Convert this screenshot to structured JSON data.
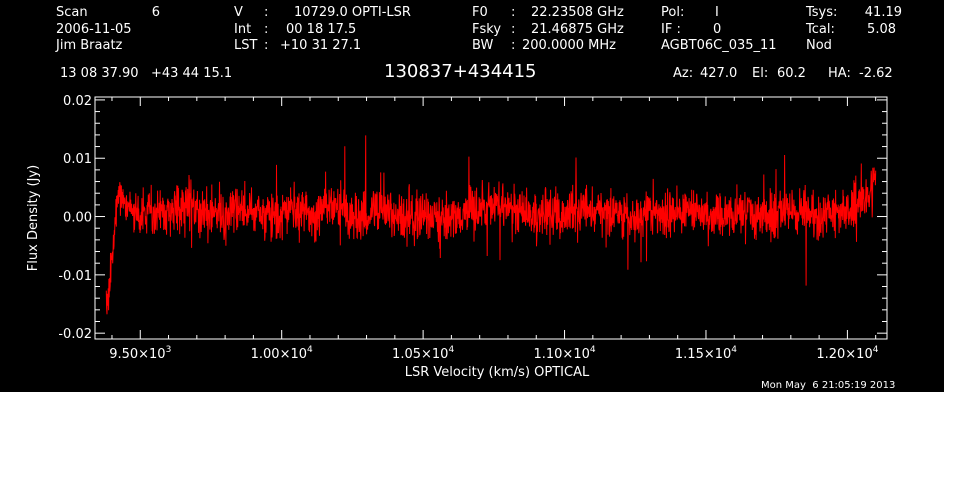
{
  "header": {
    "col1": {
      "scan_label": "Scan",
      "scan_value": "6",
      "date": "2006-11-05",
      "observer": "Jim Braatz"
    },
    "col2": {
      "v_label": "V",
      "v_sep": ":",
      "v_value": "10729.0 OPTI-LSR",
      "int_label": "Int",
      "int_sep": ":",
      "int_value": "00 18 17.5",
      "lst_label": "LST",
      "lst_sep": ":",
      "lst_value": "+10 31 27.1"
    },
    "col3": {
      "f0_label": "F0",
      "f0_sep": ":",
      "f0_value": "22.23508 GHz",
      "fsky_label": "Fsky",
      "fsky_sep": ":",
      "fsky_value": "21.46875 GHz",
      "bw_label": "BW",
      "bw_sep": ":",
      "bw_value": "200.0000 MHz"
    },
    "col4": {
      "pol_label": "Pol:",
      "pol_value": "I",
      "if_label": "IF :",
      "if_value": "0",
      "project": "AGBT06C_035_11",
      "mode": "Nod"
    },
    "col5": {
      "tsys_label": "Tsys:",
      "tsys_value": "41.19",
      "tcal_label": "Tcal:",
      "tcal_value": "5.08"
    },
    "coords": "13 08 37.90   +43 44 15.1",
    "source": "130837+434415",
    "az_label": "Az:",
    "az_value": "427.0",
    "el_label": "El:",
    "el_value": "60.2",
    "ha_label": "HA:",
    "ha_value": "-2.62"
  },
  "timestamp": "Mon May  6 21:05:19 2013",
  "colors": {
    "background": "#000000",
    "axes": "#ffffff",
    "trace": "#ff0000"
  },
  "chart_data": {
    "type": "line",
    "xlabel": "LSR Velocity (km/s) OPTICAL",
    "ylabel": "Flux Density (Jy)",
    "xlim": [
      9340,
      12140
    ],
    "ylim": [
      -0.021,
      0.0205
    ],
    "x_ticks": [
      {
        "value": 9500,
        "mantissa": "9.50",
        "exponent": "3"
      },
      {
        "value": 10000,
        "mantissa": "1.00",
        "exponent": "4"
      },
      {
        "value": 10500,
        "mantissa": "1.05",
        "exponent": "4"
      },
      {
        "value": 11000,
        "mantissa": "1.10",
        "exponent": "4"
      },
      {
        "value": 11500,
        "mantissa": "1.15",
        "exponent": "4"
      },
      {
        "value": 12000,
        "mantissa": "1.20",
        "exponent": "4"
      }
    ],
    "y_ticks": [
      {
        "value": -0.02,
        "label": "-0.02"
      },
      {
        "value": -0.01,
        "label": "-0.01"
      },
      {
        "value": 0.0,
        "label": "0.00"
      },
      {
        "value": 0.01,
        "label": "0.01"
      },
      {
        "value": 0.02,
        "label": "0.02"
      }
    ],
    "series": [
      {
        "x": [
          9380,
          9390,
          9400,
          9410,
          9420,
          9430,
          9450,
          9480,
          9500,
          9550,
          9600,
          9650,
          9700,
          9750,
          9800,
          9850,
          9900,
          9950,
          10000,
          10050,
          10100,
          10150,
          10200,
          10250,
          10300,
          10350,
          10400,
          10450,
          10500,
          10550,
          10600,
          10650,
          10700,
          10750,
          10800,
          10850,
          10900,
          10950,
          11000,
          11050,
          11100,
          11150,
          11200,
          11250,
          11300,
          11350,
          11400,
          11450,
          11500,
          11550,
          11600,
          11650,
          11700,
          11750,
          11800,
          11850,
          11900,
          11950,
          12000,
          12030,
          12060,
          12080,
          12090,
          12100
        ],
        "y": [
          -0.017,
          -0.012,
          -0.007,
          -0.002,
          0.003,
          0.004,
          0.002,
          0.001,
          0.0,
          0.0015,
          0.0,
          0.002,
          0.001,
          0.0015,
          0.0,
          0.002,
          0.001,
          0.0,
          0.0,
          0.002,
          0.0005,
          0.001,
          0.002,
          0.0,
          0.0005,
          0.0015,
          0.0,
          -0.0005,
          0.0005,
          -0.0005,
          0.0,
          0.001,
          0.0015,
          0.002,
          0.0015,
          0.001,
          0.0,
          0.0005,
          0.0,
          0.0015,
          0.001,
          0.0005,
          0.0,
          0.0,
          0.0005,
          0.0,
          0.0005,
          0.001,
          0.0,
          0.0,
          0.0005,
          0.001,
          0.0,
          0.0,
          0.001,
          0.0005,
          0.0,
          0.0,
          0.001,
          0.002,
          0.003,
          0.004,
          0.006,
          0.008
        ]
      }
    ],
    "noise_rms": 0.0035
  }
}
